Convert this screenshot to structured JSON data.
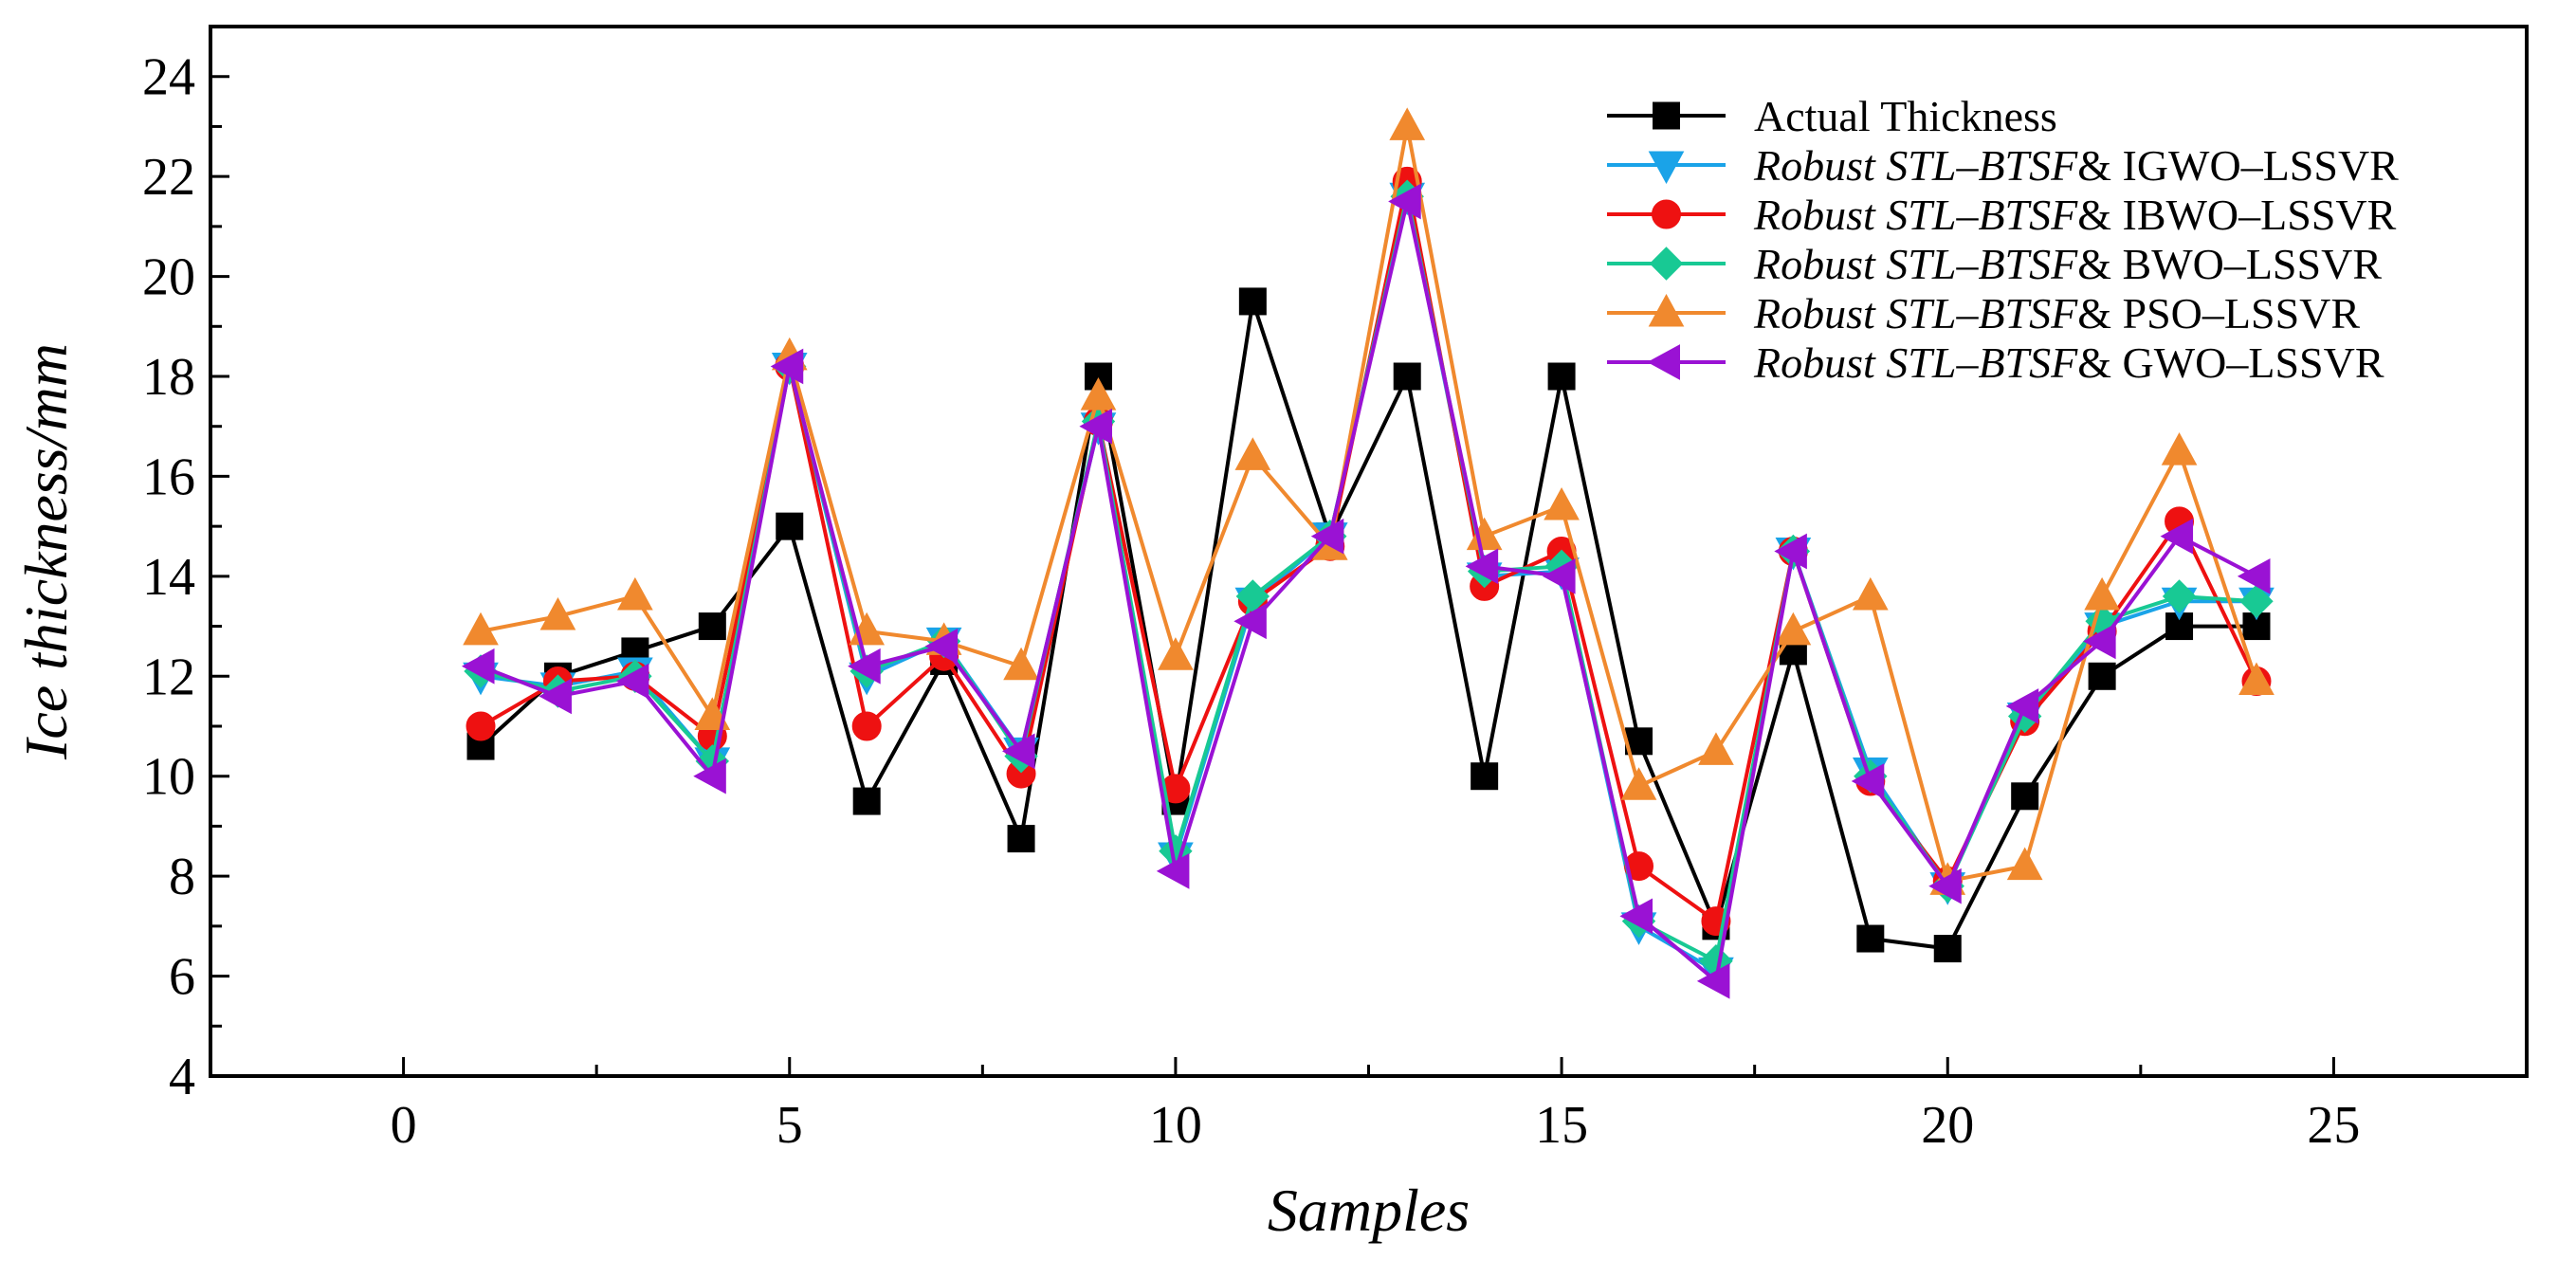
{
  "chart_data": {
    "type": "line",
    "title": "",
    "xlabel": "Samples",
    "ylabel": "Ice thickness/mm",
    "xlim": [
      -2.5,
      27.5
    ],
    "ylim": [
      4,
      25
    ],
    "x_ticks": [
      "0",
      "5",
      "10",
      "15",
      "20",
      "25"
    ],
    "y_ticks": [
      "4",
      "6",
      "8",
      "10",
      "12",
      "14",
      "16",
      "18",
      "20",
      "22",
      "24"
    ],
    "x": [
      1,
      2,
      3,
      4,
      5,
      6,
      7,
      8,
      9,
      10,
      11,
      12,
      13,
      14,
      15,
      16,
      17,
      18,
      19,
      20,
      21,
      22,
      23,
      24
    ],
    "legend_position": "top-right",
    "series": [
      {
        "name": "Actual Thickness",
        "legend_italic": "",
        "legend_plain": "Actual Thickness",
        "color": "#000000",
        "marker": "square",
        "values": [
          10.6,
          12.0,
          12.5,
          13.0,
          15.0,
          9.5,
          12.3,
          8.75,
          18.0,
          9.5,
          19.5,
          14.8,
          18.0,
          10.0,
          18.0,
          10.7,
          7.0,
          12.5,
          6.75,
          6.55,
          9.6,
          12.0,
          13.0,
          13.0
        ]
      },
      {
        "name": "Robust STL–BTSF& IGWO–LSSVR",
        "legend_italic": "Robust STL–BTSF",
        "legend_plain": "& IGWO–LSSVR",
        "color": "#1aa3e8",
        "marker": "triangle-down",
        "values": [
          12.0,
          11.8,
          12.1,
          10.3,
          18.2,
          12.0,
          12.7,
          10.5,
          17.0,
          8.4,
          13.5,
          14.8,
          21.6,
          14.0,
          14.1,
          7.0,
          6.1,
          14.5,
          10.1,
          7.8,
          11.2,
          13.0,
          13.5,
          13.5
        ]
      },
      {
        "name": "Robust STL–BTSF& IBWO–LSSVR",
        "legend_italic": "Robust STL–BTSF",
        "legend_plain": "& IBWO–LSSVR",
        "color": "#ee1111",
        "marker": "circle",
        "values": [
          11.0,
          11.9,
          12.0,
          10.8,
          18.2,
          11.0,
          12.4,
          10.05,
          17.1,
          9.75,
          13.5,
          14.6,
          21.9,
          13.8,
          14.5,
          8.2,
          7.1,
          14.5,
          9.9,
          7.9,
          11.1,
          12.9,
          15.1,
          11.9
        ]
      },
      {
        "name": "Robust STL–BTSF& BWO–LSSVR",
        "legend_italic": "Robust STL–BTSF",
        "legend_plain": "& BWO–LSSVR",
        "color": "#18c994",
        "marker": "diamond",
        "values": [
          12.1,
          11.7,
          12.0,
          10.3,
          18.2,
          12.1,
          12.7,
          10.4,
          17.1,
          8.5,
          13.6,
          14.8,
          21.6,
          14.1,
          14.2,
          7.1,
          6.3,
          14.5,
          10.0,
          7.8,
          11.2,
          13.1,
          13.6,
          13.5
        ]
      },
      {
        "name": "Robust STL–BTSF& PSO–LSSVR",
        "legend_italic": "Robust STL–BTSF",
        "legend_plain": "& PSO–LSSVR",
        "color": "#f0892e",
        "marker": "triangle-up",
        "values": [
          12.9,
          13.2,
          13.6,
          11.2,
          18.4,
          12.9,
          12.7,
          12.2,
          17.6,
          12.4,
          16.4,
          14.6,
          23.0,
          14.8,
          15.4,
          9.8,
          10.5,
          12.9,
          13.6,
          7.9,
          8.2,
          13.6,
          16.5,
          11.9
        ]
      },
      {
        "name": "Robust STL–BTSF& GWO–LSSVR",
        "legend_italic": "Robust STL–BTSF",
        "legend_plain": "& GWO–LSSVR",
        "color": "#9a12d4",
        "marker": "triangle-left",
        "values": [
          12.2,
          11.6,
          11.9,
          10.0,
          18.2,
          12.2,
          12.6,
          10.5,
          17.0,
          8.1,
          13.1,
          14.8,
          21.5,
          14.2,
          14.0,
          7.2,
          5.9,
          14.5,
          9.9,
          7.8,
          11.4,
          12.7,
          14.8,
          14.0
        ]
      }
    ]
  }
}
